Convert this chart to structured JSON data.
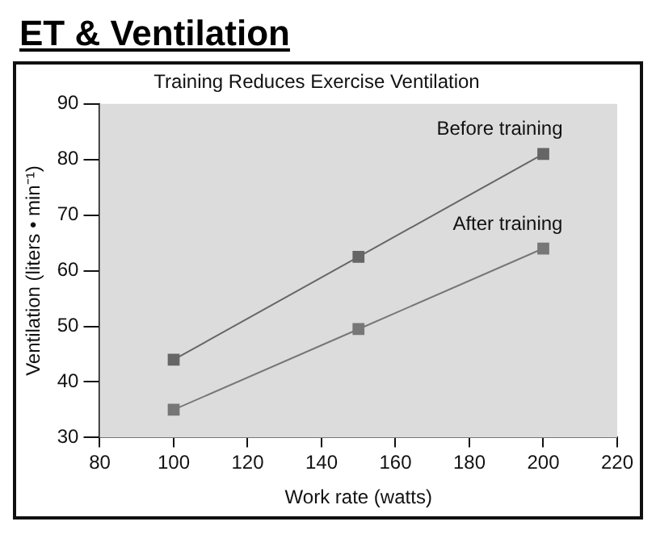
{
  "chart_data": {
    "type": "line",
    "title": "ET & Ventilation",
    "subtitle": "Training Reduces Exercise Ventilation",
    "xlabel": "Work rate (watts)",
    "ylabel": "Ventilation (liters • min⁻¹)",
    "x": [
      100,
      150,
      200
    ],
    "series": [
      {
        "name": "Before training",
        "color": "#666666",
        "values": [
          44,
          62.5,
          81
        ]
      },
      {
        "name": "After training",
        "color": "#777777",
        "values": [
          35,
          49.5,
          64
        ]
      }
    ],
    "xlim": [
      80,
      220
    ],
    "xticks": [
      80,
      100,
      120,
      140,
      160,
      180,
      200,
      220
    ],
    "ylim": [
      30,
      90
    ],
    "yticks": [
      30,
      40,
      50,
      60,
      70,
      80,
      90
    ],
    "grid": false,
    "legend": false,
    "marker": "square",
    "line_style": "solid"
  }
}
